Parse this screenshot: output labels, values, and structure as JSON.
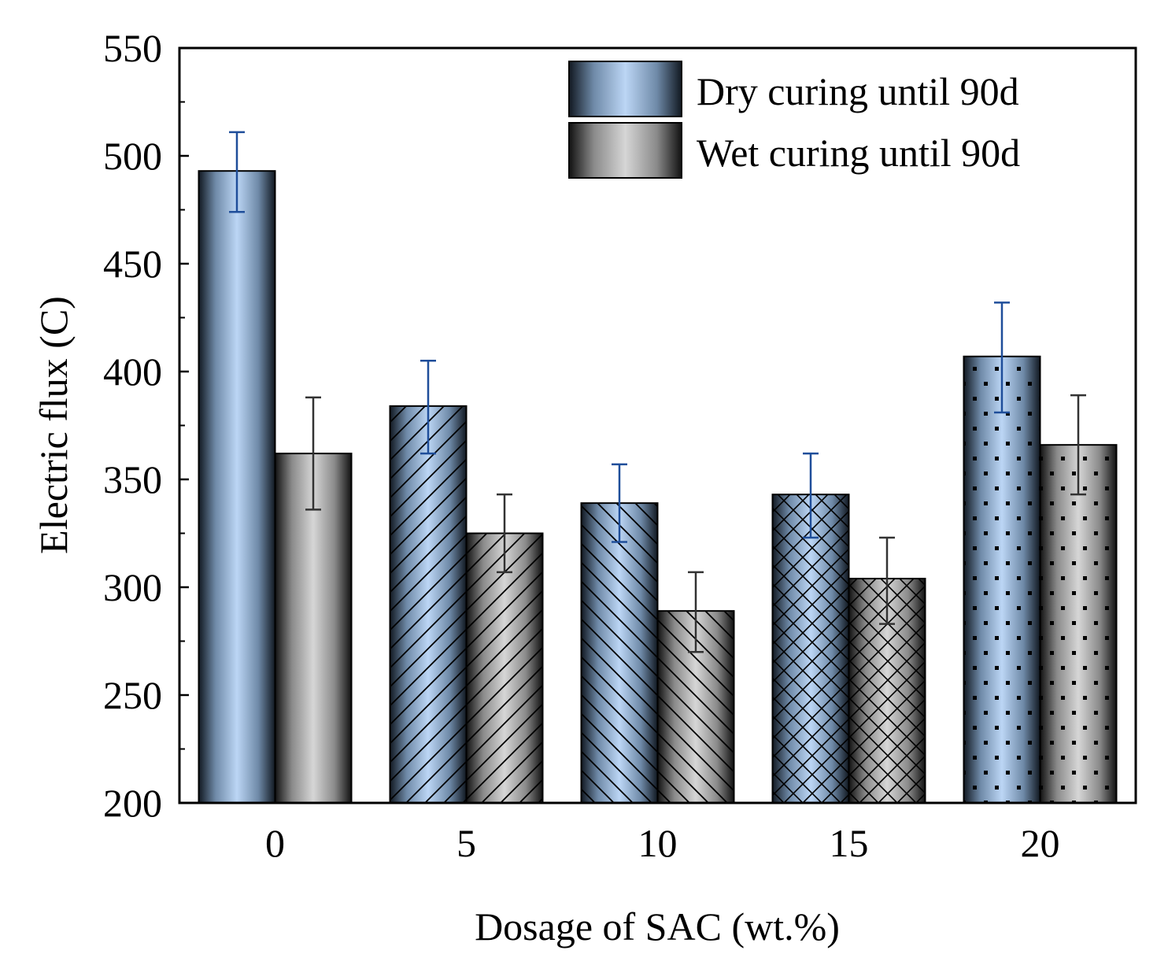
{
  "chart_data": {
    "type": "bar",
    "title": "",
    "xlabel": "Dosage of SAC (wt.%)",
    "ylabel": "Electric flux (C)",
    "ylim": [
      200,
      550
    ],
    "yticks": [
      "200",
      "250",
      "300",
      "350",
      "400",
      "450",
      "500",
      "550"
    ],
    "categories": [
      "0",
      "5",
      "10",
      "15",
      "20"
    ],
    "patterns": [
      "solid",
      "diagonal-up",
      "diagonal-down",
      "crosshatch",
      "dots"
    ],
    "legend_position": "top-right",
    "series": [
      {
        "name": "Dry curing until 90d",
        "color": "#b8d4f2",
        "edge": "#1a2433",
        "errorbar_color": "#1f4e9a",
        "values": [
          493,
          384,
          339,
          343,
          407
        ],
        "err_low": [
          474,
          362,
          321,
          323,
          381
        ],
        "err_high": [
          511,
          405,
          357,
          362,
          432
        ]
      },
      {
        "name": "Wet curing until 90d",
        "color": "#d2d2d2",
        "edge": "#1a1a1a",
        "errorbar_color": "#333333",
        "values": [
          362,
          325,
          289,
          304,
          366
        ],
        "err_low": [
          336,
          307,
          270,
          283,
          343
        ],
        "err_high": [
          388,
          343,
          307,
          323,
          389
        ]
      }
    ]
  }
}
